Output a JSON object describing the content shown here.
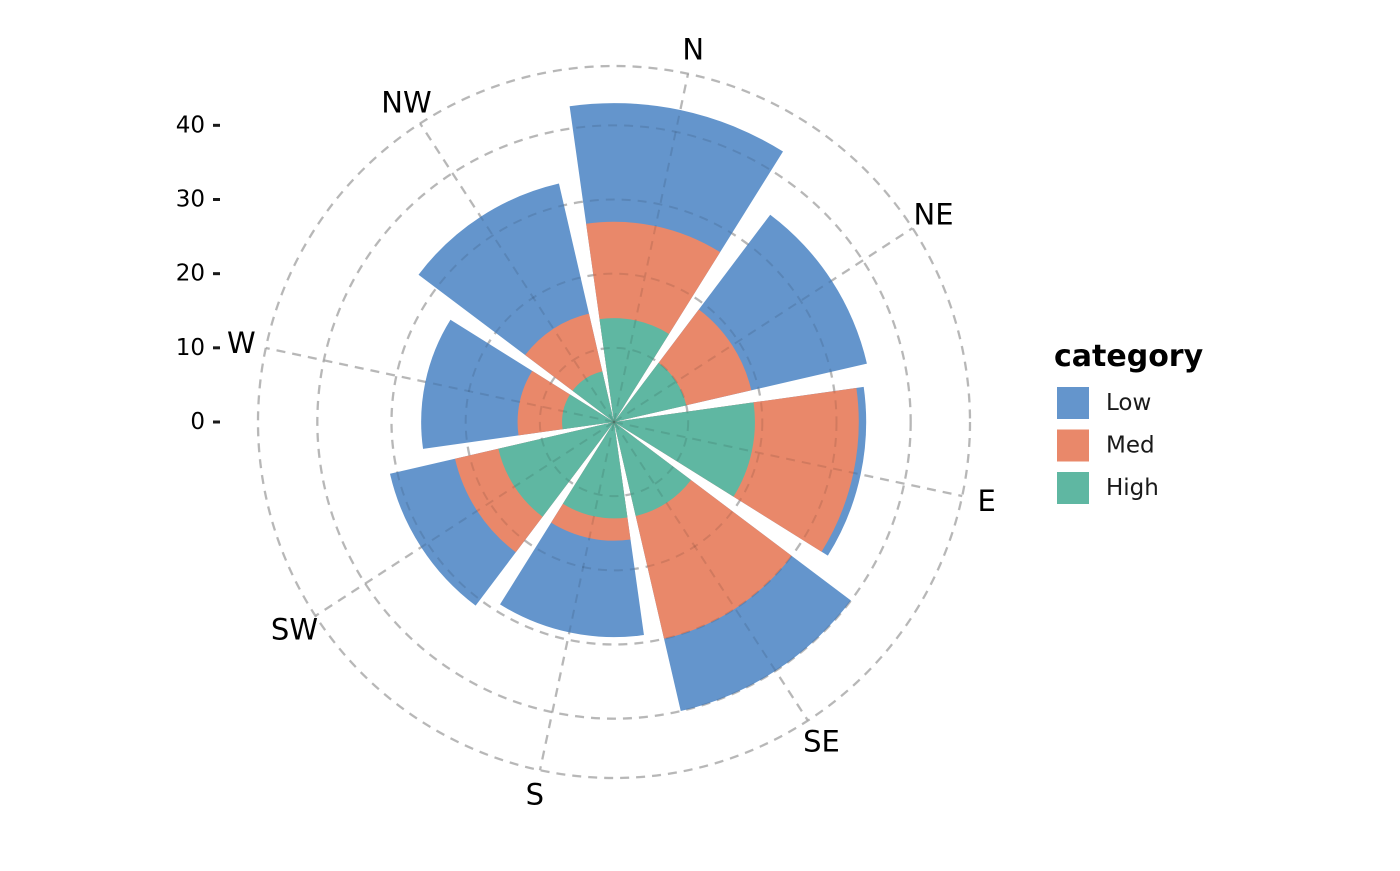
{
  "chart_data": {
    "type": "polar-bar",
    "directions": [
      "N",
      "NE",
      "E",
      "SE",
      "S",
      "SW",
      "W",
      "NW"
    ],
    "series": [
      {
        "name": "Low",
        "values": [
          43,
          35,
          34,
          40,
          29,
          31,
          26,
          33
        ]
      },
      {
        "name": "Med",
        "values": [
          27,
          19,
          33,
          30,
          16,
          22,
          13,
          15
        ]
      },
      {
        "name": "High",
        "values": [
          14,
          10,
          19,
          13,
          13,
          16,
          7,
          7
        ]
      }
    ],
    "legend_title": "category",
    "legend_position": "right",
    "radial_ticks": [
      "0",
      "10",
      "20",
      "30",
      "40"
    ],
    "radial_tick_values": [
      0,
      10,
      20,
      30,
      40
    ],
    "rlim": [
      0,
      48
    ],
    "grid": true,
    "colors": {
      "Low": "#6495CC",
      "Med": "#E9886A",
      "High": "#5FB7A2"
    }
  }
}
